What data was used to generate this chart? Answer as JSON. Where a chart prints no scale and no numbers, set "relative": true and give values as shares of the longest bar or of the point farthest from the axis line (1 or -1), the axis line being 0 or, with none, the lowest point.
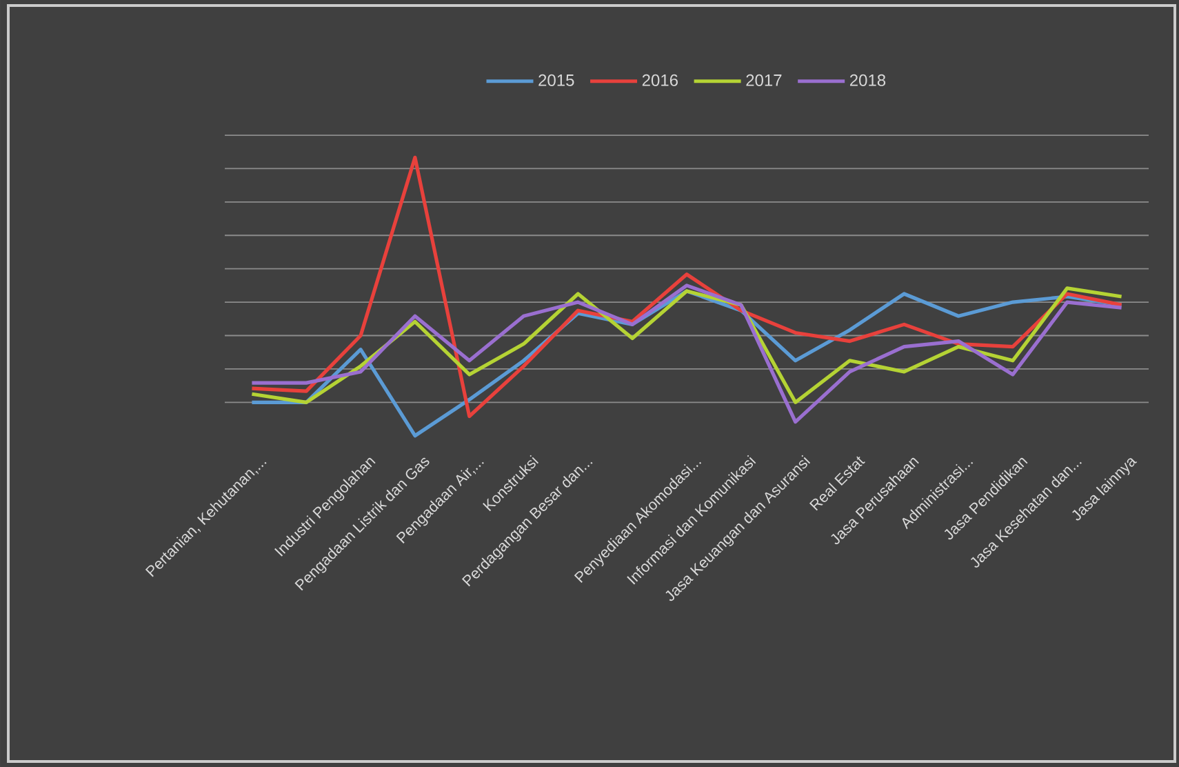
{
  "chart_data": {
    "type": "line",
    "relative": true,
    "grid": "y",
    "legend": "top",
    "marker": "none",
    "line_style": "solid",
    "categories": [
      "Pertanian, Kehutanan,...",
      null,
      "Industri Pengolahan",
      "Pengadaan Listrik dan Gas",
      "Pengadaan Air,...",
      "Konstruksi",
      "Perdagangan Besar dan...",
      null,
      "Penyediaan Akomodasi...",
      "Informasi dan Komunikasi",
      "Jasa Keuangan dan Asuransi",
      "Real Estat",
      "Jasa Perusahaan",
      "Administrasi...",
      "Jasa Pendidikan",
      "Jasa Kesehatan dan...",
      "Jasa lainnya"
    ],
    "series": [
      {
        "name": "2015",
        "color": "#5b9bd5",
        "values": [
          0.12,
          0.12,
          0.31,
          0,
          0.13,
          0.27,
          0.44,
          0.4,
          0.52,
          0.45,
          0.27,
          0.38,
          0.51,
          0.43,
          0.48,
          0.5,
          0.47
        ]
      },
      {
        "name": "2016",
        "color": "#e8413c",
        "values": [
          0.17,
          0.16,
          0.36,
          1,
          0.07,
          0.25,
          0.45,
          0.41,
          0.58,
          0.45,
          0.37,
          0.34,
          0.4,
          0.33,
          0.32,
          0.51,
          0.47
        ]
      },
      {
        "name": "2017",
        "color": "#b5d334",
        "values": [
          0.15,
          0.12,
          0.25,
          0.41,
          0.22,
          0.33,
          0.51,
          0.35,
          0.52,
          0.47,
          0.12,
          0.27,
          0.23,
          0.32,
          0.27,
          0.53,
          0.5
        ]
      },
      {
        "name": "2018",
        "color": "#9a6fd0",
        "values": [
          0.19,
          0.19,
          0.23,
          0.43,
          0.27,
          0.43,
          0.48,
          0.4,
          0.54,
          0.47,
          0.05,
          0.23,
          0.32,
          0.34,
          0.22,
          0.48,
          0.46
        ]
      }
    ]
  }
}
